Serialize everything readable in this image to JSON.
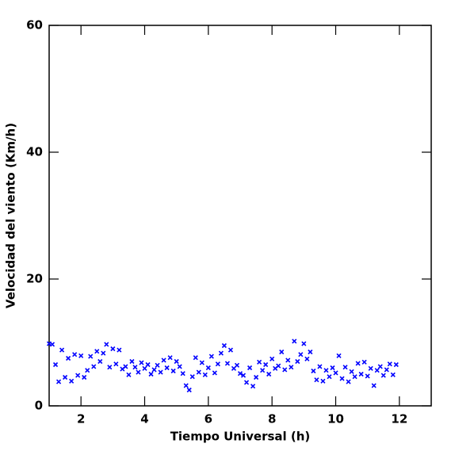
{
  "chart_data": {
    "type": "scatter",
    "xlabel": "Tiempo Universal (h)",
    "ylabel": "Velocidad del viento (Km/h)",
    "xlim": [
      1,
      13
    ],
    "ylim": [
      0,
      60
    ],
    "xticks": [
      2,
      4,
      6,
      8,
      10,
      12
    ],
    "yticks": [
      0,
      20,
      40,
      60
    ],
    "color": "#0000ff",
    "marker": "x",
    "x": [
      1.0,
      1.1,
      1.2,
      1.3,
      1.4,
      1.5,
      1.6,
      1.7,
      1.8,
      1.9,
      2.0,
      2.1,
      2.2,
      2.3,
      2.4,
      2.5,
      2.6,
      2.7,
      2.8,
      2.9,
      3.0,
      3.1,
      3.2,
      3.3,
      3.4,
      3.5,
      3.6,
      3.7,
      3.8,
      3.9,
      4.0,
      4.1,
      4.2,
      4.3,
      4.4,
      4.5,
      4.6,
      4.7,
      4.8,
      4.9,
      5.0,
      5.1,
      5.2,
      5.3,
      5.4,
      5.5,
      5.6,
      5.7,
      5.8,
      5.9,
      6.0,
      6.1,
      6.2,
      6.3,
      6.4,
      6.5,
      6.6,
      6.7,
      6.8,
      6.9,
      7.0,
      7.1,
      7.2,
      7.3,
      7.4,
      7.5,
      7.6,
      7.7,
      7.8,
      7.9,
      8.0,
      8.1,
      8.2,
      8.3,
      8.4,
      8.5,
      8.6,
      8.7,
      8.8,
      8.9,
      9.0,
      9.1,
      9.2,
      9.3,
      9.4,
      9.5,
      9.6,
      9.7,
      9.8,
      9.9,
      10.0,
      10.1,
      10.2,
      10.3,
      10.4,
      10.5,
      10.6,
      10.7,
      10.8,
      10.9,
      11.0,
      11.1,
      11.2,
      11.3,
      11.4,
      11.5,
      11.6,
      11.7,
      11.8,
      11.9
    ],
    "values": [
      9.8,
      9.7,
      6.5,
      3.8,
      8.8,
      4.5,
      7.5,
      3.9,
      8.1,
      4.8,
      7.9,
      4.5,
      5.6,
      7.8,
      6.2,
      8.6,
      7.0,
      8.3,
      9.7,
      6.1,
      9.0,
      6.6,
      8.8,
      5.8,
      6.2,
      4.9,
      7.0,
      6.1,
      5.3,
      6.8,
      5.9,
      6.5,
      5.0,
      5.7,
      6.4,
      5.3,
      7.2,
      6.0,
      7.6,
      5.5,
      7.0,
      6.2,
      5.1,
      3.2,
      2.5,
      4.6,
      7.6,
      5.3,
      6.8,
      4.9,
      6.0,
      7.8,
      5.2,
      6.6,
      8.3,
      9.5,
      6.7,
      8.8,
      5.9,
      6.4,
      5.1,
      4.8,
      3.7,
      6.0,
      3.1,
      4.5,
      6.9,
      5.6,
      6.5,
      5.0,
      7.4,
      5.9,
      6.3,
      8.5,
      5.7,
      7.2,
      6.1,
      10.2,
      7.0,
      8.1,
      9.8,
      7.4,
      8.5,
      5.5,
      4.1,
      6.2,
      3.9,
      5.6,
      4.6,
      6.0,
      5.2,
      7.9,
      4.3,
      6.1,
      3.8,
      5.4,
      4.6,
      6.7,
      5.0,
      6.9,
      4.7,
      5.9,
      3.2,
      5.6,
      6.2,
      4.8,
      5.7,
      6.6,
      4.9,
      6.5
    ]
  }
}
